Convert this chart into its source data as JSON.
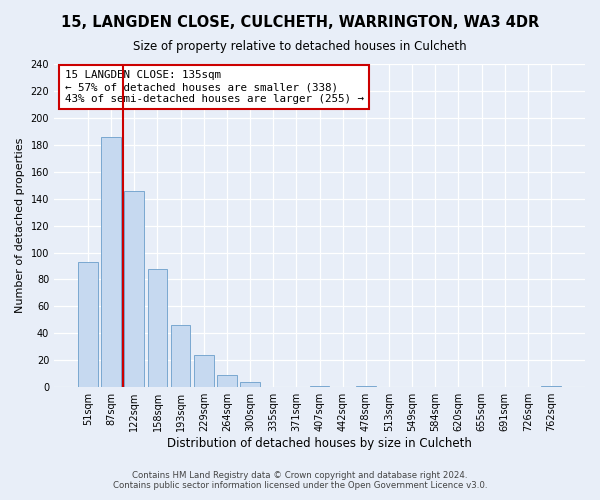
{
  "title": "15, LANGDEN CLOSE, CULCHETH, WARRINGTON, WA3 4DR",
  "subtitle": "Size of property relative to detached houses in Culcheth",
  "xlabel": "Distribution of detached houses by size in Culcheth",
  "ylabel": "Number of detached properties",
  "bar_labels": [
    "51sqm",
    "87sqm",
    "122sqm",
    "158sqm",
    "193sqm",
    "229sqm",
    "264sqm",
    "300sqm",
    "335sqm",
    "371sqm",
    "407sqm",
    "442sqm",
    "478sqm",
    "513sqm",
    "549sqm",
    "584sqm",
    "620sqm",
    "655sqm",
    "691sqm",
    "726sqm",
    "762sqm"
  ],
  "bar_values": [
    93,
    186,
    146,
    88,
    46,
    24,
    9,
    4,
    0,
    0,
    1,
    0,
    1,
    0,
    0,
    0,
    0,
    0,
    0,
    0,
    1
  ],
  "bar_color": "#c6d9f0",
  "bar_edge_color": "#7aa8d0",
  "vline_x_index": 2,
  "vline_color": "#cc0000",
  "annotation_title": "15 LANGDEN CLOSE: 135sqm",
  "annotation_line1": "← 57% of detached houses are smaller (338)",
  "annotation_line2": "43% of semi-detached houses are larger (255) →",
  "annotation_box_color": "#ffffff",
  "annotation_box_edge": "#cc0000",
  "ylim": [
    0,
    240
  ],
  "yticks": [
    0,
    20,
    40,
    60,
    80,
    100,
    120,
    140,
    160,
    180,
    200,
    220,
    240
  ],
  "footer_line1": "Contains HM Land Registry data © Crown copyright and database right 2024.",
  "footer_line2": "Contains public sector information licensed under the Open Government Licence v3.0.",
  "bg_color": "#e8eef8"
}
